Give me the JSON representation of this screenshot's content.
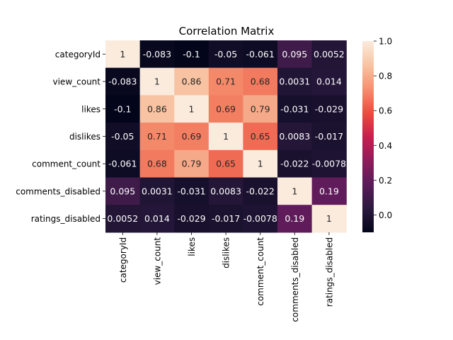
{
  "chart_data": {
    "type": "heatmap",
    "title": "Correlation Matrix",
    "row_labels": [
      "categoryId",
      "view_count",
      "likes",
      "dislikes",
      "comment_count",
      "comments_disabled",
      "ratings_disabled"
    ],
    "col_labels": [
      "categoryId",
      "view_count",
      "likes",
      "dislikes",
      "comment_count",
      "comments_disabled",
      "ratings_disabled"
    ],
    "values": [
      [
        1,
        -0.083,
        -0.1,
        -0.05,
        -0.061,
        0.095,
        0.0052
      ],
      [
        -0.083,
        1,
        0.86,
        0.71,
        0.68,
        0.0031,
        0.014
      ],
      [
        -0.1,
        0.86,
        1,
        0.69,
        0.79,
        -0.031,
        -0.029
      ],
      [
        -0.05,
        0.71,
        0.69,
        1,
        0.65,
        0.0083,
        -0.017
      ],
      [
        -0.061,
        0.68,
        0.79,
        0.65,
        1,
        -0.022,
        -0.0078
      ],
      [
        0.095,
        0.0031,
        -0.031,
        0.0083,
        -0.022,
        1,
        0.19
      ],
      [
        0.0052,
        0.014,
        -0.029,
        -0.017,
        -0.0078,
        0.19,
        1
      ]
    ],
    "cell_text": [
      [
        "1",
        "-0.083",
        "-0.1",
        "-0.05",
        "-0.061",
        "0.095",
        "0.0052"
      ],
      [
        "-0.083",
        "1",
        "0.86",
        "0.71",
        "0.68",
        "0.0031",
        "0.014"
      ],
      [
        "-0.1",
        "0.86",
        "1",
        "0.69",
        "0.79",
        "-0.031",
        "-0.029"
      ],
      [
        "-0.05",
        "0.71",
        "0.69",
        "1",
        "0.65",
        "0.0083",
        "-0.017"
      ],
      [
        "-0.061",
        "0.68",
        "0.79",
        "0.65",
        "1",
        "-0.022",
        "-0.0078"
      ],
      [
        "0.095",
        "0.0031",
        "-0.031",
        "0.0083",
        "-0.022",
        "1",
        "0.19"
      ],
      [
        "0.0052",
        "0.014",
        "-0.029",
        "-0.017",
        "-0.0078",
        "0.19",
        "1"
      ]
    ],
    "colorbar": {
      "ticks": [
        0.0,
        0.2,
        0.4,
        0.6,
        0.8,
        1.0
      ],
      "tick_labels": [
        "0.0",
        "0.2",
        "0.4",
        "0.6",
        "0.8",
        "1.0"
      ],
      "range": [
        -0.1,
        1.0
      ]
    },
    "colormap": "rocket",
    "colormap_stops": [
      "#03051a",
      "#2b1a3f",
      "#5a1c5a",
      "#8e1d5b",
      "#c71f4e",
      "#ec4d3e",
      "#f5906f",
      "#f8c4a3",
      "#faebdd"
    ]
  }
}
